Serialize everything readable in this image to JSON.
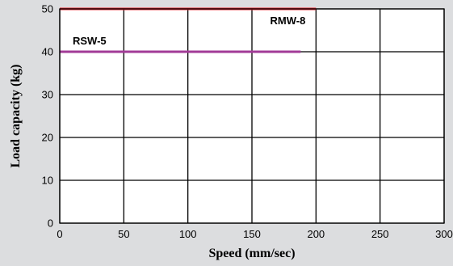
{
  "chart_data": {
    "type": "line",
    "xlabel": "Speed (mm/sec)",
    "ylabel": "Load capacity (kg)",
    "xlim": [
      0,
      300
    ],
    "ylim": [
      0,
      50
    ],
    "xticks": [
      0,
      50,
      100,
      150,
      200,
      250,
      300
    ],
    "yticks": [
      0,
      10,
      20,
      30,
      40,
      50
    ],
    "grid": true,
    "series": [
      {
        "name": "RMW-8",
        "color": "#e8262d",
        "x": [
          0,
          200
        ],
        "y": [
          50,
          50
        ]
      },
      {
        "name": "RSW-5",
        "color": "#a23b97",
        "x": [
          0,
          188
        ],
        "y": [
          40,
          40
        ]
      }
    ]
  }
}
